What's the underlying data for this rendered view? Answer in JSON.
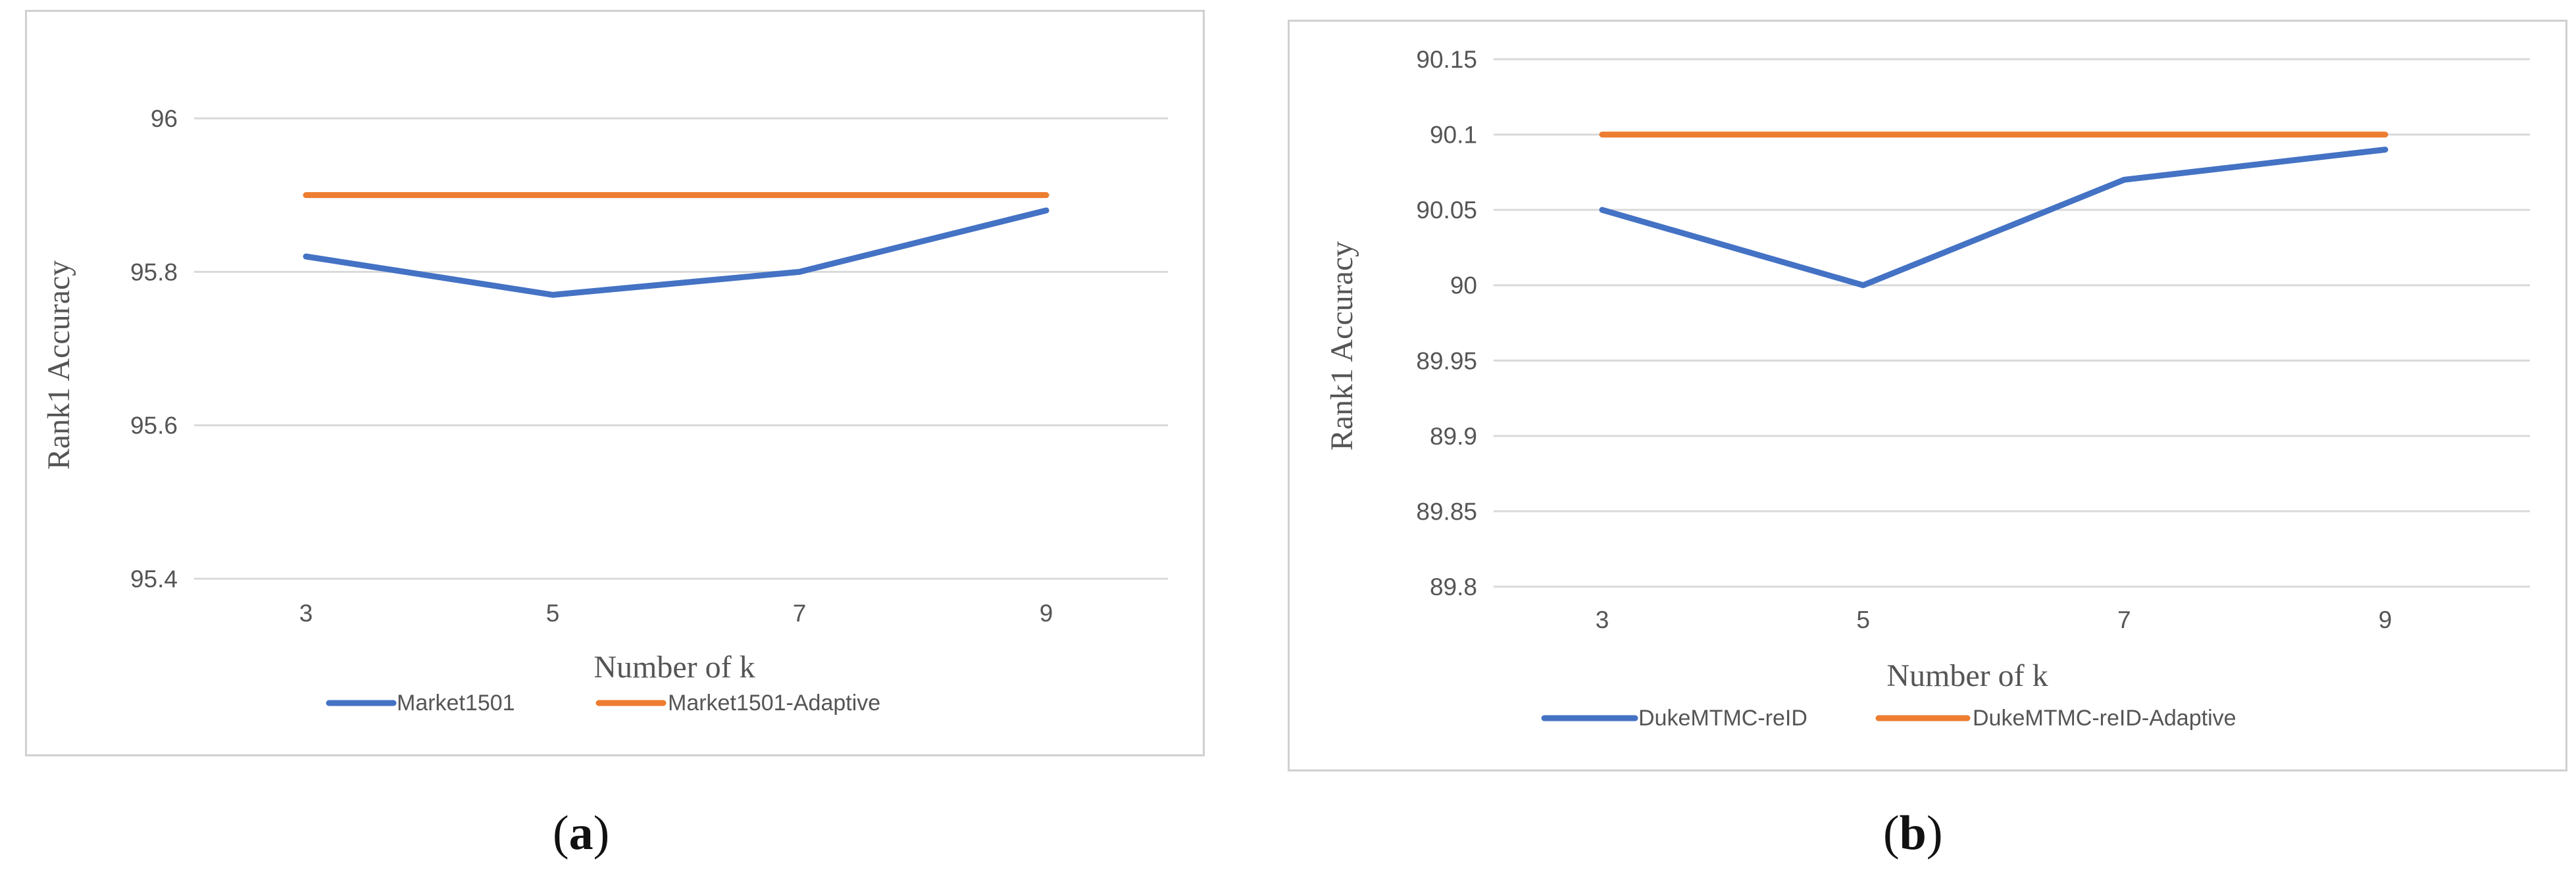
{
  "chart_data": [
    {
      "type": "line",
      "caption_letter": "a",
      "categories": [
        "3",
        "5",
        "7",
        "9"
      ],
      "series": [
        {
          "name": "Market1501",
          "values": [
            95.82,
            95.77,
            95.8,
            95.88
          ],
          "color": "#4472C4"
        },
        {
          "name": "Market1501-Adaptive",
          "values": [
            95.9,
            95.9,
            95.9,
            95.9
          ],
          "color": "#ED7D31"
        }
      ],
      "yticks": [
        "95.4",
        "95.6",
        "95.8",
        "96"
      ],
      "ylim": [
        95.4,
        96.0
      ],
      "xlabel": "Number of k",
      "ylabel": "Rank1 Accuracy",
      "grid": true,
      "legend_position": "bottom"
    },
    {
      "type": "line",
      "caption_letter": "b",
      "categories": [
        "3",
        "5",
        "7",
        "9"
      ],
      "series": [
        {
          "name": "DukeMTMC-reID",
          "values": [
            90.05,
            90.0,
            90.07,
            90.09
          ],
          "color": "#4472C4"
        },
        {
          "name": "DukeMTMC-reID-Adaptive",
          "values": [
            90.1,
            90.1,
            90.1,
            90.1
          ],
          "color": "#ED7D31"
        }
      ],
      "yticks": [
        "89.8",
        "89.85",
        "89.9",
        "89.95",
        "90",
        "90.05",
        "90.1",
        "90.15"
      ],
      "ylim": [
        89.8,
        90.15
      ],
      "xlabel": "Number of k",
      "ylabel": "Rank1 Accuracy",
      "grid": true,
      "legend_position": "bottom"
    }
  ]
}
